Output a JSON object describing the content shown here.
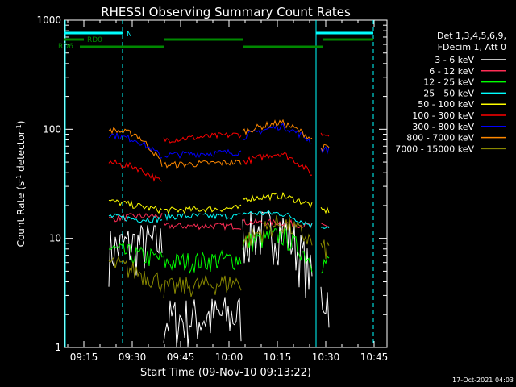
{
  "chart_data": {
    "type": "line",
    "title": "RHESSI Observing Summary Count Rates",
    "xlabel": "Start Time (09-Nov-10 09:13:22)",
    "ylabel_main": "Count Rate (s",
    "ylabel_sup1": "-1",
    "ylabel_mid": " detector",
    "ylabel_sup2": "-1",
    "ylabel_end": ")",
    "ylog": true,
    "ylim": [
      1,
      1000
    ],
    "x_ticks": [
      "09:15",
      "09:30",
      "09:45",
      "10:00",
      "10:15",
      "10:30",
      "10:45"
    ],
    "y_ticks": [
      "1",
      "10",
      "100",
      "1000"
    ],
    "legend_header": [
      "Det 1,3,4,5,6,9,",
      "FDecim 1, Att 0"
    ],
    "footer_date": "17-Oct-2021 04:03",
    "flags": [
      {
        "label": "N",
        "color": "#00ffff"
      },
      {
        "label": "RD0",
        "color": "#008800"
      },
      {
        "label": "RD6",
        "color": "#008800"
      }
    ],
    "series": [
      {
        "name": "3 - 6 keV",
        "color": "#ffffff",
        "levels": [
          8,
          9,
          9,
          1.8,
          2,
          11,
          13,
          4,
          3
        ]
      },
      {
        "name": "6 - 12 keV",
        "color": "#ff2d55",
        "levels": [
          15,
          16,
          16,
          13,
          13,
          14,
          14,
          13,
          13
        ]
      },
      {
        "name": "12 - 25 keV",
        "color": "#00ff00",
        "levels": [
          8,
          7,
          6.5,
          6,
          6.5,
          9,
          11,
          6,
          6
        ]
      },
      {
        "name": "25 - 50 keV",
        "color": "#00ffff",
        "levels": [
          16,
          15,
          15,
          16,
          16,
          17,
          17,
          13,
          13
        ]
      },
      {
        "name": "50 - 100 keV",
        "color": "#ffff00",
        "levels": [
          22,
          20,
          18,
          18,
          19,
          23,
          25,
          20,
          18
        ]
      },
      {
        "name": "100 - 300 keV",
        "color": "#ff0000",
        "levels": [
          50,
          45,
          32,
          80,
          90,
          50,
          63,
          38,
          90
        ]
      },
      {
        "name": "300 - 800 keV",
        "color": "#0000ff",
        "levels": [
          90,
          80,
          55,
          58,
          62,
          85,
          112,
          75,
          65
        ]
      },
      {
        "name": "800 - 7000 keV",
        "color": "#ff8800",
        "levels": [
          100,
          90,
          47,
          47,
          50,
          95,
          120,
          80,
          68
        ]
      },
      {
        "name": "7000 - 15000 keV",
        "color": "#888800",
        "levels": [
          6,
          5,
          4,
          3.5,
          4,
          9,
          15,
          9,
          8
        ]
      }
    ]
  }
}
